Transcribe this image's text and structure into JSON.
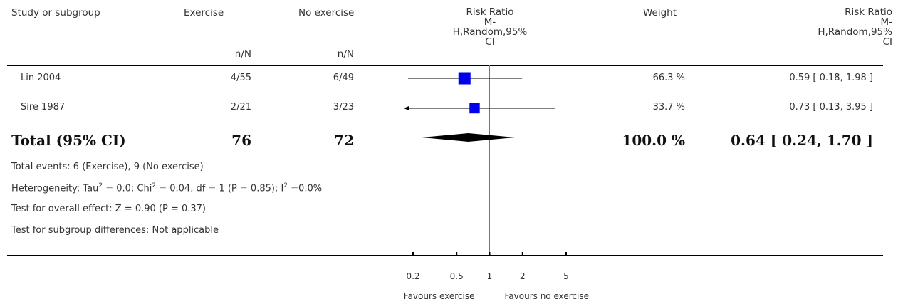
{
  "headers": {
    "study": "Study or subgroup",
    "exercise": "Exercise",
    "exercise_sub": "n/N",
    "no_exercise": "No exercise",
    "no_exercise_sub": "n/N",
    "rr_line1": "Risk Ratio",
    "rr_line2": "M-",
    "rr_line3": "H,Random,95%",
    "rr_line4": "CI",
    "weight": "Weight",
    "rr2_line1": "Risk Ratio",
    "rr2_line2": "M-",
    "rr2_line3": "H,Random,95%",
    "rr2_line4": "CI"
  },
  "studies": [
    {
      "name": "Lin 2004",
      "exercise": "4/55",
      "no_exercise": "6/49",
      "weight": "66.3 %",
      "ci_text": "0.59 [ 0.18, 1.98 ]"
    },
    {
      "name": "Sire 1987",
      "exercise": "2/21",
      "no_exercise": "3/23",
      "weight": "33.7 %",
      "ci_text": "0.73 [ 0.13, 3.95 ]"
    }
  ],
  "total": {
    "label": "Total (95% CI)",
    "exercise": "76",
    "no_exercise": "72",
    "weight": "100.0 %",
    "ci_text": "0.64 [ 0.24, 1.70 ]"
  },
  "footer": {
    "events": "Total events: 6 (Exercise), 9 (No exercise)",
    "heterogeneity_pre": "Heterogeneity: Tau",
    "heterogeneity_mid1": " = 0.0; Chi",
    "heterogeneity_mid2": " = 0.04, df = 1 (P = 0.85); I",
    "heterogeneity_post": " =0.0%",
    "sup": "2",
    "overall": "Test for overall effect: Z = 0.90 (P = 0.37)",
    "subgroup": "Test for subgroup differences: Not applicable"
  },
  "chart_data": {
    "type": "forest",
    "scale": "log",
    "xlim": [
      0.2,
      5
    ],
    "null_value": 1,
    "ticks": [
      "0.2",
      "0.5",
      "1",
      "2",
      "5"
    ],
    "tick_values": [
      0.2,
      0.5,
      1,
      2,
      5
    ],
    "favours_left": "Favours exercise",
    "favours_right": "Favours no exercise",
    "studies": [
      {
        "name": "Lin 2004",
        "rr": 0.59,
        "lower": 0.18,
        "upper": 1.98,
        "weight": 66.3
      },
      {
        "name": "Sire 1987",
        "rr": 0.73,
        "lower": 0.13,
        "upper": 3.95,
        "weight": 33.7
      }
    ],
    "pooled": {
      "rr": 0.64,
      "lower": 0.24,
      "upper": 1.7
    },
    "colors": {
      "marker": "#0000ee",
      "diamond": "#000000",
      "line": "#000000",
      "null_line": "#777777"
    }
  }
}
